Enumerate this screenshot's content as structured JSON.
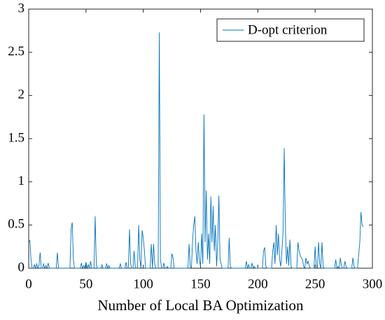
{
  "chart_data": {
    "type": "line",
    "xlabel": "Number of Local BA Optimization",
    "x": [
      0,
      1,
      2,
      3,
      4,
      5,
      6,
      7,
      8,
      9,
      10,
      11,
      12,
      13,
      14,
      15,
      16,
      17,
      18,
      19,
      20,
      21,
      22,
      23,
      24,
      25,
      26,
      27,
      28,
      29,
      30,
      31,
      32,
      33,
      34,
      35,
      36,
      37,
      38,
      39,
      40,
      41,
      42,
      43,
      44,
      45,
      46,
      47,
      48,
      49,
      50,
      51,
      52,
      53,
      54,
      55,
      56,
      57,
      58,
      59,
      60,
      61,
      62,
      63,
      64,
      65,
      66,
      67,
      68,
      69,
      70,
      71,
      72,
      73,
      74,
      75,
      76,
      77,
      78,
      79,
      80,
      81,
      82,
      83,
      84,
      85,
      86,
      87,
      88,
      89,
      90,
      91,
      92,
      93,
      94,
      95,
      96,
      97,
      98,
      99,
      100,
      101,
      102,
      103,
      104,
      105,
      106,
      107,
      108,
      109,
      110,
      111,
      112,
      113,
      114,
      115,
      116,
      117,
      118,
      119,
      120,
      121,
      122,
      123,
      124,
      125,
      126,
      127,
      128,
      129,
      130,
      131,
      132,
      133,
      134,
      135,
      136,
      137,
      138,
      139,
      140,
      141,
      142,
      143,
      144,
      145,
      146,
      147,
      148,
      149,
      150,
      151,
      152,
      153,
      154,
      155,
      156,
      157,
      158,
      159,
      160,
      161,
      162,
      163,
      164,
      165,
      166,
      167,
      168,
      169,
      170,
      171,
      172,
      173,
      174,
      175,
      176,
      177,
      178,
      179,
      180,
      181,
      182,
      183,
      184,
      185,
      186,
      187,
      188,
      189,
      190,
      191,
      192,
      193,
      194,
      195,
      196,
      197,
      198,
      199,
      200,
      201,
      202,
      203,
      204,
      205,
      206,
      207,
      208,
      209,
      210,
      211,
      212,
      213,
      214,
      215,
      216,
      217,
      218,
      219,
      220,
      221,
      222,
      223,
      224,
      225,
      226,
      227,
      228,
      229,
      230,
      231,
      232,
      233,
      234,
      235,
      236,
      237,
      238,
      239,
      240,
      241,
      242,
      243,
      244,
      245,
      246,
      247,
      248,
      249,
      250,
      251,
      252,
      253,
      254,
      255,
      256,
      257,
      258,
      259,
      260,
      261,
      262,
      263,
      264,
      265,
      266,
      267,
      268,
      269,
      270,
      271,
      272,
      273,
      274,
      275,
      276,
      277,
      278,
      279,
      280,
      281,
      282,
      283,
      284,
      285,
      286,
      287,
      288,
      289,
      290,
      291,
      292
    ],
    "series": [
      {
        "name": "D-opt criterion",
        "color": "#0072bd",
        "values": [
          0.3,
          0.32,
          0.1,
          0,
          0,
          0.04,
          0,
          0.05,
          0,
          0.03,
          0.18,
          0,
          0,
          0.05,
          0,
          0.03,
          0,
          0.06,
          0,
          0,
          0,
          0,
          0,
          0,
          0,
          0.18,
          0,
          0,
          0,
          0,
          0,
          0,
          0,
          0,
          0,
          0,
          0,
          0.45,
          0.53,
          0.1,
          0,
          0,
          0,
          0,
          0,
          0,
          0.06,
          0,
          0.03,
          0,
          0.07,
          0,
          0.04,
          0,
          0.08,
          0,
          0,
          0,
          0.6,
          0.05,
          0,
          0,
          0,
          0,
          0.04,
          0,
          0,
          0,
          0.05,
          0,
          0.03,
          0,
          0,
          0,
          0,
          0,
          0,
          0,
          0,
          0,
          0.05,
          0,
          0,
          0,
          0,
          0.07,
          0,
          0,
          0.45,
          0.05,
          0,
          0,
          0.2,
          0.02,
          0,
          0,
          0.5,
          0.1,
          0,
          0.44,
          0.35,
          0.2,
          0,
          0,
          0,
          0,
          0,
          0.28,
          0,
          0.28,
          0.05,
          0,
          0,
          0,
          2.73,
          0.1,
          0,
          0,
          0.06,
          0,
          0,
          0.02,
          0,
          0,
          0,
          0.17,
          0.12,
          0,
          0,
          0,
          0,
          0,
          0,
          0,
          0,
          0,
          0,
          0,
          0,
          0,
          0.28,
          0.02,
          0,
          0.3,
          0.5,
          0.6,
          0.2,
          0.05,
          0.3,
          0.1,
          0.02,
          0.4,
          0.05,
          1.78,
          0.3,
          0.9,
          0.1,
          0.4,
          0.05,
          0.83,
          0.3,
          0.72,
          0.2,
          0.5,
          0.02,
          0.3,
          0.84,
          0.1,
          0.05,
          0,
          0,
          0,
          0,
          0,
          0,
          0.35,
          0.02,
          0,
          0,
          0,
          0,
          0,
          0,
          0,
          0,
          0,
          0,
          0,
          0,
          0,
          0.08,
          0,
          0.04,
          0,
          0,
          0.06,
          0,
          0.02,
          0,
          0,
          0,
          0,
          0,
          0,
          0,
          0.2,
          0.24,
          0.02,
          0,
          0,
          0,
          0,
          0,
          0.2,
          0.3,
          0.05,
          0.5,
          0.15,
          0.4,
          0.1,
          0.02,
          0.2,
          0.4,
          1.39,
          0.5,
          0.05,
          0.25,
          0.03,
          0.33,
          0.02,
          0,
          0,
          0,
          0,
          0,
          0.3,
          0.2,
          0.15,
          0.12,
          0.1,
          0.02,
          0,
          0.12,
          0.05,
          0.08,
          0.02,
          0,
          0,
          0,
          0,
          0.25,
          0.02,
          0,
          0.3,
          0.05,
          0,
          0.3,
          0.02,
          0,
          0,
          0,
          0,
          0,
          0,
          0,
          0,
          0,
          0,
          0.1,
          0,
          0.02,
          0,
          0.12,
          0.03,
          0,
          0,
          0.08,
          0.02,
          0,
          0,
          0,
          0,
          0,
          0.12,
          0.02,
          0,
          0,
          0,
          0.15,
          0.3,
          0.65,
          0.5,
          0.48
        ]
      }
    ],
    "xlim": [
      0,
      300
    ],
    "xticks": [
      0,
      50,
      100,
      150,
      200,
      250,
      300
    ],
    "ylim": [
      0,
      3
    ],
    "yticks": [
      0,
      0.5,
      1,
      1.5,
      2,
      2.5,
      3
    ],
    "legend": "top-right"
  }
}
